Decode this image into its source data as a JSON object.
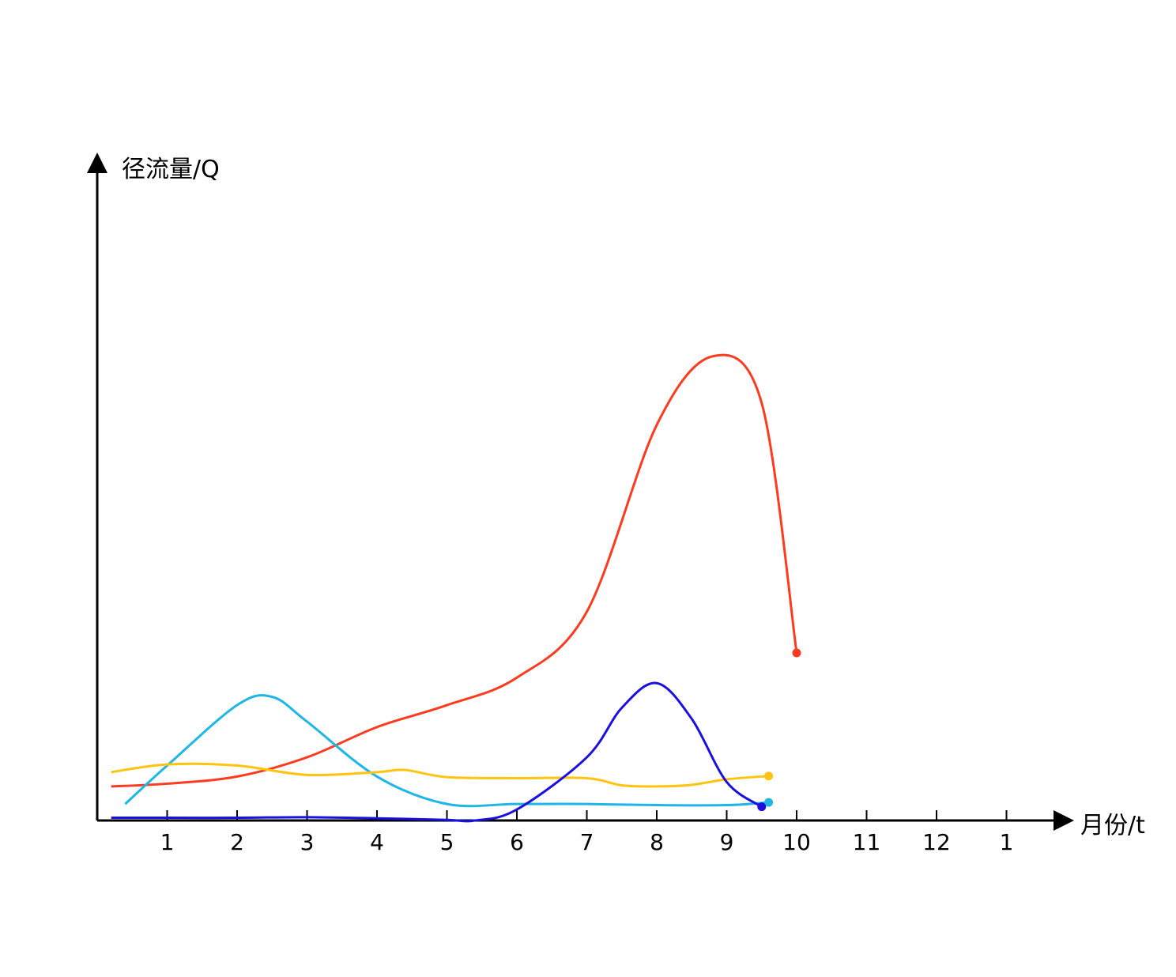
{
  "chart_data": {
    "type": "line",
    "title": "",
    "ylabel": "径流量/Q",
    "xlabel": "月份/t",
    "x_ticks": [
      "1",
      "2",
      "3",
      "4",
      "5",
      "6",
      "7",
      "8",
      "9",
      "10",
      "11",
      "12",
      "1"
    ],
    "xlim": [
      0,
      13.2
    ],
    "ylim": [
      0,
      10
    ],
    "grid": false,
    "legend": "none",
    "series": [
      {
        "color": "#ff3b1f",
        "points": [
          [
            0.2,
            0.62
          ],
          [
            1,
            0.67
          ],
          [
            2,
            0.8
          ],
          [
            3,
            1.15
          ],
          [
            4,
            1.7
          ],
          [
            5,
            2.1
          ],
          [
            6,
            2.6
          ],
          [
            7,
            3.8
          ],
          [
            8,
            7.2
          ],
          [
            8.8,
            8.45
          ],
          [
            9.5,
            7.6
          ],
          [
            10,
            3.05
          ]
        ]
      },
      {
        "color": "#1fb6e6",
        "points": [
          [
            0.4,
            0.3
          ],
          [
            1,
            1.0
          ],
          [
            2,
            2.1
          ],
          [
            2.5,
            2.25
          ],
          [
            3,
            1.8
          ],
          [
            4,
            0.8
          ],
          [
            5,
            0.3
          ],
          [
            6,
            0.3
          ],
          [
            7,
            0.3
          ],
          [
            8,
            0.28
          ],
          [
            9,
            0.28
          ],
          [
            9.6,
            0.33
          ]
        ]
      },
      {
        "color": "#ffc410",
        "points": [
          [
            0.2,
            0.88
          ],
          [
            1,
            1.02
          ],
          [
            2,
            1.0
          ],
          [
            3,
            0.83
          ],
          [
            4,
            0.88
          ],
          [
            4.4,
            0.92
          ],
          [
            5,
            0.79
          ],
          [
            6,
            0.77
          ],
          [
            7,
            0.77
          ],
          [
            7.5,
            0.64
          ],
          [
            8,
            0.62
          ],
          [
            8.5,
            0.65
          ],
          [
            9,
            0.75
          ],
          [
            9.6,
            0.81
          ]
        ]
      },
      {
        "color": "#1a10e0",
        "points": [
          [
            0.2,
            0.05
          ],
          [
            1,
            0.05
          ],
          [
            2,
            0.05
          ],
          [
            3,
            0.06
          ],
          [
            4,
            0.04
          ],
          [
            5,
            0.01
          ],
          [
            5.4,
            0.0
          ],
          [
            6,
            0.2
          ],
          [
            7,
            1.15
          ],
          [
            7.5,
            2.05
          ],
          [
            8,
            2.5
          ],
          [
            8.5,
            1.85
          ],
          [
            9,
            0.7
          ],
          [
            9.5,
            0.25
          ]
        ]
      }
    ]
  }
}
